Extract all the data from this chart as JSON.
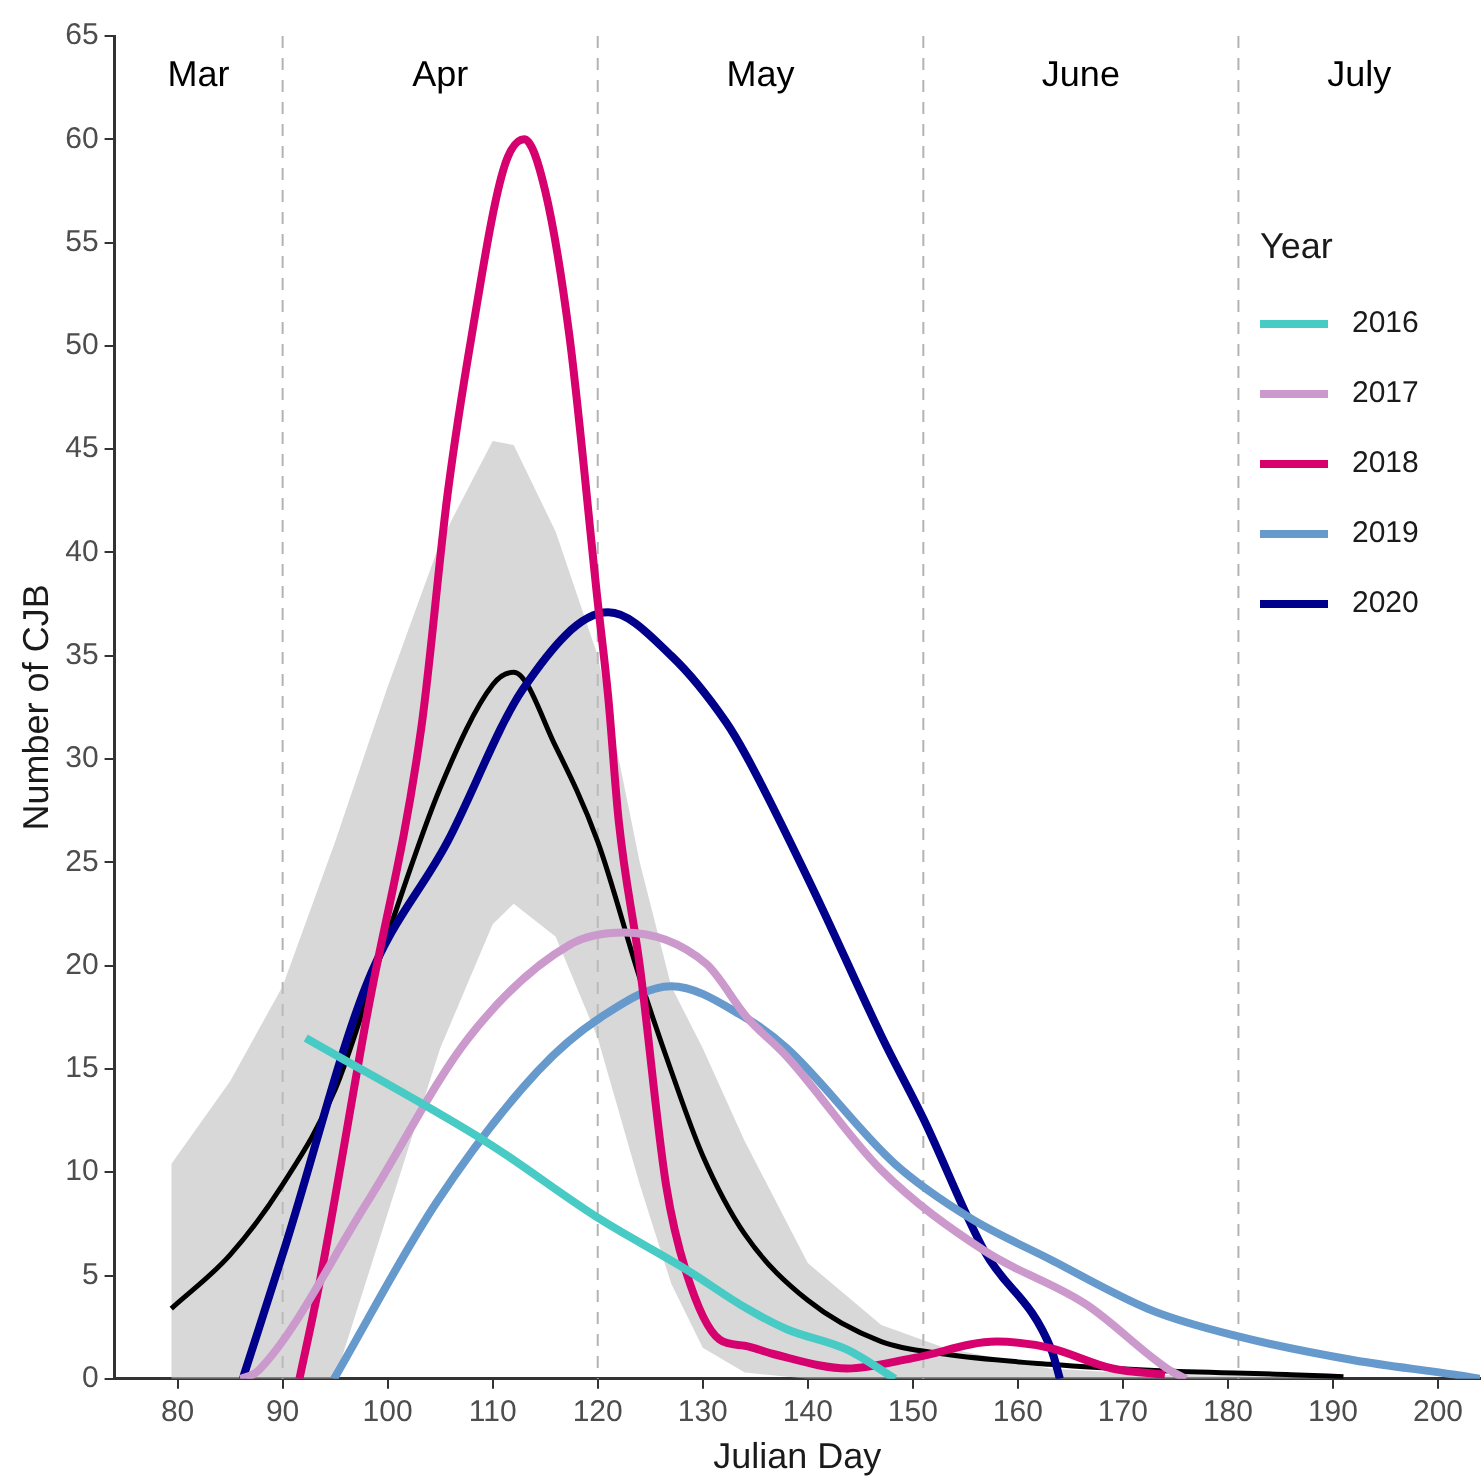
{
  "chart_data": {
    "type": "line",
    "xlabel": "Julian Day",
    "ylabel": "Number of CJB",
    "legend_title": "Year",
    "legend": "right",
    "grid": false,
    "marker": "none",
    "line_style": "solid",
    "xlim": [
      74,
      204
    ],
    "xticks": [
      80,
      90,
      100,
      110,
      120,
      130,
      140,
      150,
      160,
      170,
      180,
      190,
      200
    ],
    "ylim": [
      0,
      65
    ],
    "yticks": [
      0,
      5,
      10,
      15,
      20,
      25,
      30,
      35,
      40,
      45,
      50,
      55,
      60,
      65
    ],
    "ref_lines": [
      {
        "axis": "x",
        "value": 90,
        "color": "#b3b3b3",
        "line_style": "dashed"
      },
      {
        "axis": "x",
        "value": 120,
        "color": "#b3b3b3",
        "line_style": "dashed"
      },
      {
        "axis": "x",
        "value": 151,
        "color": "#b3b3b3",
        "line_style": "dashed"
      },
      {
        "axis": "x",
        "value": 181,
        "color": "#b3b3b3",
        "line_style": "dashed"
      }
    ],
    "annotations": [
      "Mar",
      "Apr",
      "May",
      "June",
      "July"
    ],
    "series": [
      {
        "name": "2016",
        "color": "#48cbc4",
        "x": [
          92.2,
          109.6,
          120,
          128.4,
          134.2,
          138,
          143.8,
          148.3
        ],
        "values": [
          16.5,
          11.4,
          7.8,
          5.3,
          3.4,
          2.4,
          1.4,
          0
        ]
      },
      {
        "name": "2017",
        "color": "#cc99cc",
        "x": [
          86,
          87.7,
          98,
          107.7,
          117.3,
          122.5,
          130.3,
          134.2,
          138,
          147,
          156.8,
          166.5,
          174.2,
          176
        ],
        "values": [
          0,
          0.4,
          8.5,
          16.5,
          21,
          21.6,
          20.1,
          17.5,
          15.6,
          10.1,
          6.2,
          3.6,
          0.5,
          0
        ]
      },
      {
        "name": "2018",
        "color": "#d6006e",
        "x": [
          91.6,
          93.5,
          98,
          103.2,
          105.7,
          108,
          111,
          113,
          115,
          117.3,
          120,
          121,
          122,
          124,
          126.5,
          128.4,
          131.6,
          134,
          136.7,
          143.8,
          150,
          158,
          163,
          169,
          174
        ],
        "values": [
          0,
          4.6,
          17.5,
          31.5,
          42.8,
          50.5,
          58.5,
          60,
          57.5,
          50.5,
          37.6,
          33,
          27,
          20,
          9.4,
          5.2,
          1.9,
          1.6,
          1.2,
          0.5,
          1,
          1.8,
          1.5,
          0.5,
          0.2
        ]
      },
      {
        "name": "2019",
        "color": "#6699cc",
        "x": [
          94.9,
          104.6,
          114.3,
          120.3,
          127,
          134,
          138,
          148.3,
          155.4,
          163,
          172.8,
          180.6,
          192,
          201.6,
          204
        ],
        "values": [
          0,
          8.5,
          14.9,
          17.5,
          19,
          17.5,
          16,
          10.4,
          7.8,
          5.8,
          3.3,
          2.1,
          0.9,
          0.2,
          0
        ]
      },
      {
        "name": "2020",
        "color": "#00008b",
        "x": [
          86.2,
          90.3,
          98,
          105.7,
          112.9,
          121,
          127,
          132.2,
          134.2,
          140.5,
          147.1,
          151,
          156.8,
          163.2,
          164
        ],
        "values": [
          0,
          6.5,
          19.1,
          26,
          33.4,
          37.1,
          35,
          31.8,
          30.1,
          23.7,
          16.5,
          12.6,
          6.2,
          1.4,
          0
        ]
      },
      {
        "color": "#000000",
        "x": [
          79.4,
          85,
          90,
          95,
          100,
          105,
          110,
          112,
          116,
          120,
          124,
          127,
          130,
          134,
          140,
          147,
          153,
          163,
          173,
          186,
          191
        ],
        "values": [
          3.4,
          6,
          9.4,
          14,
          21.5,
          28.6,
          33.6,
          34.2,
          30.6,
          26,
          19.4,
          14.9,
          10.8,
          7,
          3.8,
          1.8,
          1.2,
          0.7,
          0.4,
          0.2,
          0.1
        ],
        "lower": [
          0,
          0,
          0,
          0,
          8,
          16,
          22,
          23,
          21.4,
          16.5,
          9.4,
          4.6,
          1.5,
          0.3,
          0,
          0,
          0,
          0,
          0,
          0,
          0
        ],
        "upper": [
          10.4,
          14.4,
          19,
          26,
          33.5,
          40.5,
          45.4,
          45.2,
          41,
          35,
          25,
          19,
          16,
          11.5,
          5.6,
          2.6,
          1.5,
          0.5,
          0.2,
          0.1,
          0.05
        ]
      }
    ]
  }
}
